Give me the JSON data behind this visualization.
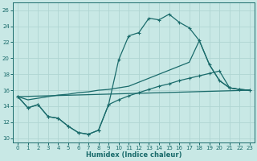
{
  "xlabel": "Humidex (Indice chaleur)",
  "background_color": "#c8e8e5",
  "grid_color": "#b0d5d2",
  "line_color": "#1a6b6b",
  "xlim": [
    -0.5,
    23.5
  ],
  "ylim": [
    9.5,
    27.0
  ],
  "yticks": [
    10,
    12,
    14,
    16,
    18,
    20,
    22,
    24,
    26
  ],
  "xticks": [
    0,
    1,
    2,
    3,
    4,
    5,
    6,
    7,
    8,
    9,
    10,
    11,
    12,
    13,
    14,
    15,
    16,
    17,
    18,
    19,
    20,
    21,
    22,
    23
  ],
  "curve1_x": [
    0,
    1,
    2,
    3,
    4,
    5,
    6,
    7,
    8,
    9,
    10,
    11,
    12,
    13,
    14,
    15,
    16,
    17,
    18,
    19,
    20,
    21,
    22,
    23
  ],
  "curve1_y": [
    15.2,
    13.8,
    14.2,
    12.7,
    12.5,
    11.5,
    10.7,
    10.5,
    11.0,
    14.2,
    19.8,
    22.8,
    23.2,
    25.0,
    24.8,
    25.5,
    24.5,
    23.8,
    22.2,
    19.2,
    17.2,
    16.3,
    16.1,
    16.0
  ],
  "curve2_x": [
    0,
    23
  ],
  "curve2_y": [
    15.2,
    16.0
  ],
  "curve3_x": [
    0,
    1,
    2,
    3,
    4,
    5,
    6,
    7,
    8,
    9,
    10,
    11,
    12,
    13,
    14,
    15,
    16,
    17,
    18,
    19,
    20,
    21,
    22,
    23
  ],
  "curve3_y": [
    15.2,
    13.8,
    14.2,
    12.7,
    12.5,
    11.5,
    10.7,
    10.5,
    11.0,
    14.2,
    14.8,
    15.3,
    15.7,
    16.1,
    16.5,
    16.8,
    17.2,
    17.5,
    17.8,
    18.1,
    18.4,
    16.3,
    16.1,
    16.0
  ],
  "curve4_x": [
    0,
    1,
    2,
    3,
    4,
    5,
    6,
    7,
    8,
    9,
    10,
    11,
    12,
    13,
    14,
    15,
    16,
    17,
    18,
    19,
    20,
    21,
    22,
    23
  ],
  "curve4_y": [
    15.2,
    14.8,
    15.0,
    15.2,
    15.4,
    15.5,
    15.7,
    15.8,
    16.0,
    16.1,
    16.3,
    16.5,
    17.0,
    17.5,
    18.0,
    18.5,
    19.0,
    19.5,
    22.2,
    19.2,
    17.2,
    16.3,
    16.1,
    16.0
  ]
}
